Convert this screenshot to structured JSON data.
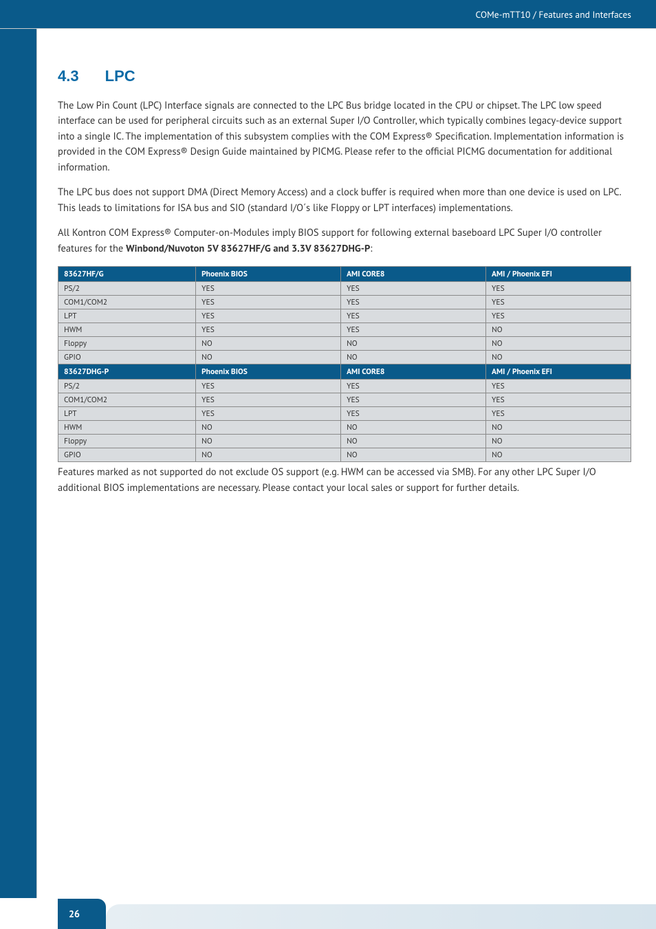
{
  "header": {
    "breadcrumb": "COMe-mTT10 / Features and Interfaces"
  },
  "section": {
    "number": "4.3",
    "title": "LPC"
  },
  "paragraphs": {
    "p1": "The Low Pin Count (LPC) Interface signals are connected to the LPC Bus bridge located in the CPU or chipset. The LPC low speed interface can be used for peripheral circuits such as an external Super I/O Controller, which typically combines legacy-device support into a single IC. The implementation of this subsystem complies with the COM Express® Specification. Implementation information is provided in the COM Express® Design Guide maintained by PICMG. Please refer to the official PICMG documentation for additional information.",
    "p2": "The LPC bus does not support DMA (Direct Memory Access) and a clock buffer is required when more than one device is used on LPC. This leads to limitations for ISA bus and SIO (standard I/O´s like Floppy or LPT interfaces) implementations.",
    "p3_pre": "All Kontron COM Express® Computer-on-Modules imply BIOS support for following external baseboard LPC Super I/O controller features for the ",
    "p3_bold": "Winbond/Nuvoton 5V 83627HF/G and 3.3V 83627DHG-P",
    "p3_post": ":",
    "p4": " Features marked as not supported do not exclude OS support (e.g. HWM can be accessed via SMB). For any other LPC Super I/O additional BIOS implementations are necessary. Please contact your local sales or support for further details."
  },
  "table": {
    "columns": [
      "",
      "Phoenix BIOS",
      "AMI CORE8",
      "AMI / Phoenix EFI"
    ],
    "group1_header": "83627HF/G",
    "group1_rows": [
      [
        "PS/2",
        "YES",
        "YES",
        "YES"
      ],
      [
        "COM1/COM2",
        "YES",
        "YES",
        "YES"
      ],
      [
        "LPT",
        "YES",
        "YES",
        "YES"
      ],
      [
        "HWM",
        "YES",
        "YES",
        "NO"
      ],
      [
        "Floppy",
        "NO",
        "NO",
        "NO"
      ],
      [
        "GPIO",
        "NO",
        "NO",
        "NO"
      ]
    ],
    "group2_header": "83627DHG-P",
    "group2_rows": [
      [
        "PS/2",
        "YES",
        "YES",
        "YES"
      ],
      [
        "COM1/COM2",
        "YES",
        "YES",
        "YES"
      ],
      [
        "LPT",
        "YES",
        "YES",
        "YES"
      ],
      [
        "HWM",
        "NO",
        "NO",
        "NO"
      ],
      [
        "Floppy",
        "NO",
        "NO",
        "NO"
      ],
      [
        "GPIO",
        "NO",
        "NO",
        "NO"
      ]
    ],
    "header_bg": "#0a5a8a",
    "cell_bg": "#d9dcdf",
    "border_color": "#8a8a8a"
  },
  "footer": {
    "page": "26"
  },
  "colors": {
    "brand_blue": "#0a5a8a",
    "heading_blue": "#0a6aa6",
    "text": "#333333",
    "background": "#ffffff"
  }
}
